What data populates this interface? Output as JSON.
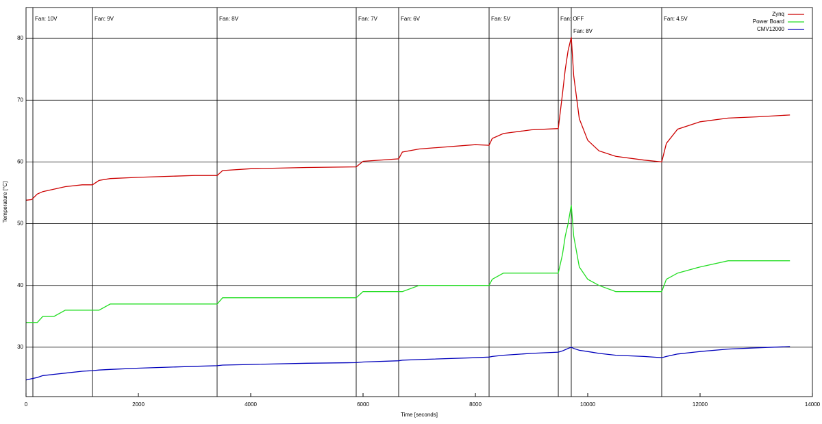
{
  "chart_data": {
    "type": "line",
    "xlabel": "Time [seconds]",
    "ylabel": "Temperature [°C]",
    "x": [
      0,
      100,
      200,
      300,
      500,
      700,
      1000,
      1183,
      1300,
      1500,
      2000,
      3000,
      3402,
      3500,
      4000,
      5000,
      5878,
      6000,
      6634,
      6700,
      7000,
      8000,
      8244,
      8300,
      8500,
      9000,
      9476,
      9550,
      9600,
      9650,
      9707,
      9750,
      9850,
      10000,
      10200,
      10500,
      11000,
      11317,
      11400,
      11600,
      12000,
      12500,
      13000,
      13600
    ],
    "series": [
      {
        "name": "Zynq",
        "color": "#cc0000",
        "values": [
          53.8,
          53.9,
          54.8,
          55.2,
          55.6,
          56,
          56.3,
          56.3,
          57,
          57.3,
          57.5,
          57.8,
          57.8,
          58.6,
          58.9,
          59.1,
          59.2,
          60.1,
          60.5,
          61.6,
          62.1,
          62.8,
          62.7,
          63.8,
          64.6,
          65.2,
          65.4,
          71,
          75,
          78,
          80.2,
          74,
          67,
          63.5,
          61.8,
          60.9,
          60.3,
          60,
          63,
          65.3,
          66.5,
          67.1,
          67.3,
          67.6
        ]
      },
      {
        "name": "Power Board",
        "color": "#22dd22",
        "values": [
          34,
          34,
          34,
          35,
          35,
          36,
          36,
          36,
          36,
          37,
          37,
          37,
          37,
          38,
          38,
          38,
          38,
          39,
          39,
          39,
          40,
          40,
          40,
          41,
          42,
          42,
          42,
          45,
          48,
          50,
          53,
          48,
          43,
          41,
          40,
          39,
          39,
          39,
          41,
          42,
          43,
          44,
          44,
          44
        ]
      },
      {
        "name": "CMV12000",
        "color": "#0000bb",
        "values": [
          24.7,
          24.9,
          25.1,
          25.4,
          25.6,
          25.8,
          26.1,
          26.2,
          26.3,
          26.4,
          26.6,
          26.9,
          27,
          27.1,
          27.2,
          27.4,
          27.5,
          27.6,
          27.8,
          27.9,
          28,
          28.3,
          28.4,
          28.5,
          28.7,
          29,
          29.2,
          29.4,
          29.6,
          29.8,
          30,
          29.8,
          29.5,
          29.3,
          29,
          28.7,
          28.5,
          28.3,
          28.5,
          28.9,
          29.3,
          29.7,
          29.9,
          30.1
        ]
      }
    ],
    "annotations": [
      {
        "x": 122,
        "text": "Fan: 10V"
      },
      {
        "x": 1183,
        "text": "Fan: 9V"
      },
      {
        "x": 3402,
        "text": "Fan: 8V"
      },
      {
        "x": 5878,
        "text": "Fan: 7V"
      },
      {
        "x": 6634,
        "text": "Fan: 6V"
      },
      {
        "x": 8244,
        "text": "Fan: 5V"
      },
      {
        "x": 9476,
        "text": "Fan: OFF"
      },
      {
        "x": 9707,
        "text": "Fan: 8V"
      },
      {
        "x": 11317,
        "text": "Fan: 4.5V"
      }
    ],
    "xlim": [
      0,
      14000
    ],
    "xticks": [
      0,
      2000,
      4000,
      6000,
      8000,
      10000,
      12000,
      14000
    ],
    "ylim": [
      22,
      85
    ],
    "yticks": [
      30,
      40,
      50,
      60,
      70,
      80
    ],
    "grid": true,
    "legend": "top-right"
  }
}
